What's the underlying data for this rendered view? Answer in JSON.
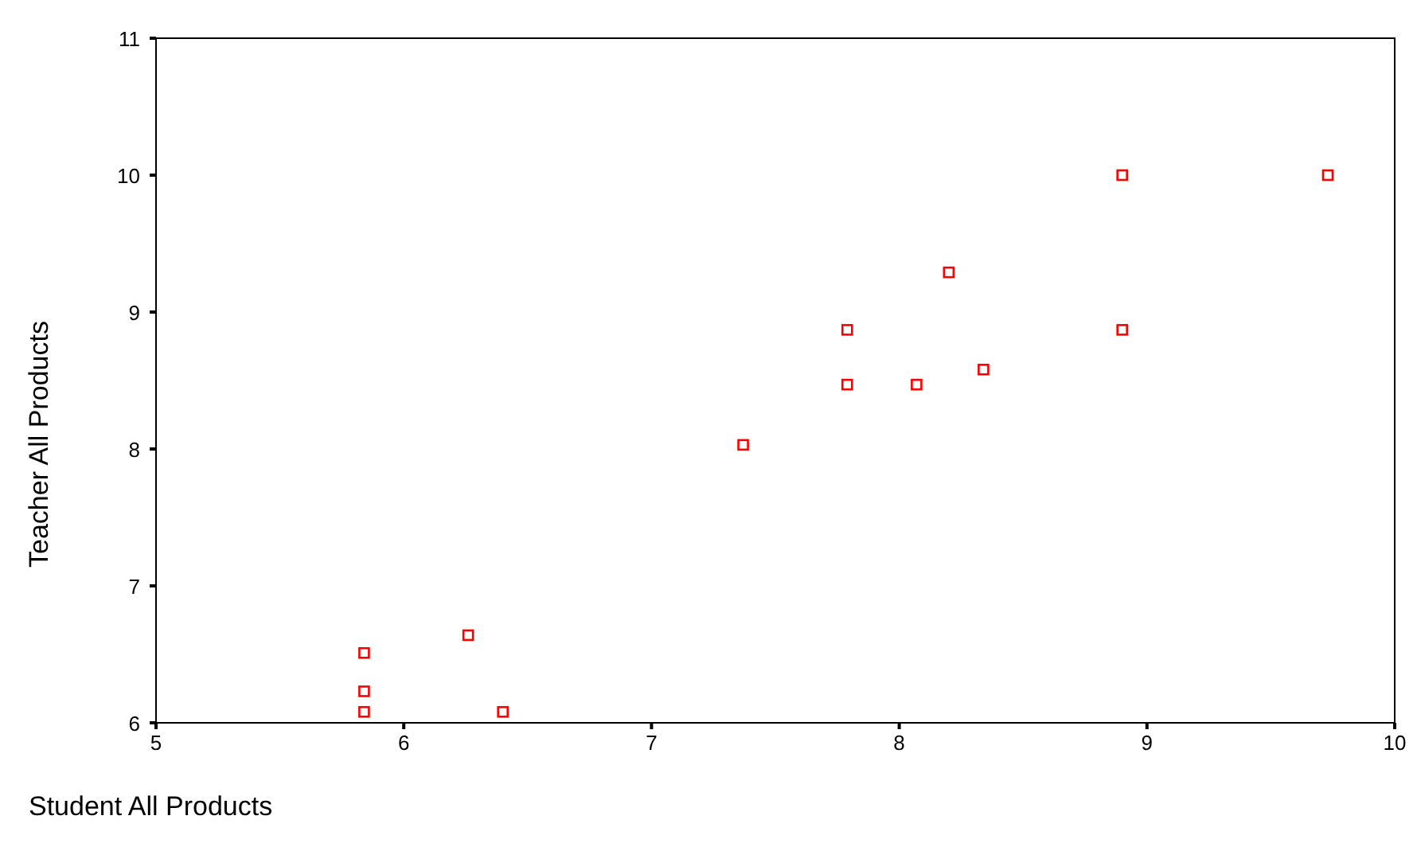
{
  "chart_data": {
    "type": "scatter",
    "xlabel": "Student All Products",
    "ylabel": "Teacher All Products",
    "x": [
      5.84,
      5.84,
      5.84,
      6.26,
      6.4,
      7.37,
      7.79,
      7.79,
      8.07,
      8.2,
      8.34,
      8.9,
      8.9,
      9.73
    ],
    "series": [
      {
        "color": "#ff0000",
        "values": [
          6.51,
          6.23,
          6.08,
          6.64,
          6.08,
          8.03,
          8.87,
          8.47,
          8.47,
          9.29,
          8.58,
          8.87,
          10,
          10
        ]
      }
    ],
    "xlim": [
      5,
      10
    ],
    "ylim": [
      6,
      11
    ],
    "xticks": [
      5,
      6,
      7,
      8,
      9,
      10
    ],
    "yticks": [
      6,
      7,
      8,
      9,
      10,
      11
    ],
    "marker": "square",
    "grid": false
  }
}
